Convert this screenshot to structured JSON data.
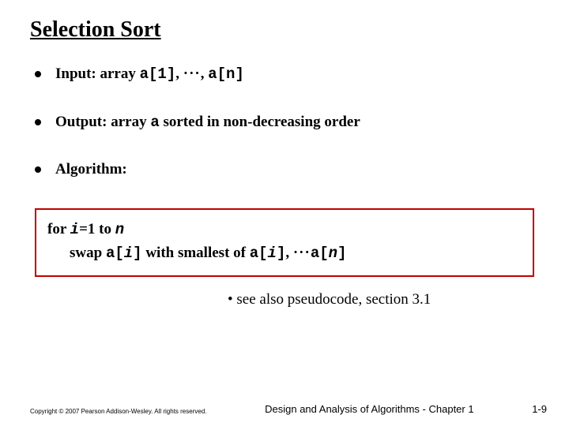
{
  "title": "Selection Sort",
  "bullets": {
    "input": {
      "prefix": "Input: array ",
      "a1": "a[1]",
      "sep": ", ",
      "ellipsis": "···",
      "sep2": ", ",
      "an": "a[n]"
    },
    "output": {
      "prefix": "Output: array ",
      "a": "a",
      "suffix": " sorted in non-decreasing order"
    },
    "algorithm_label": "Algorithm:"
  },
  "algo": {
    "line1": {
      "for": "for ",
      "i": "i",
      "eq1to": "=1 to ",
      "n": "n"
    },
    "line2": {
      "swap": "swap ",
      "a_open": "a[",
      "i1": "i",
      "close1": "]",
      "with": " with smallest of ",
      "a_open2": "a[",
      "i2": "i",
      "close2": "]",
      "sep": ", ",
      "ellipsis": "···",
      "a_open3": "a[",
      "n": "n",
      "close3": "]"
    }
  },
  "note": "• see also pseudocode, section 3.1",
  "footer": {
    "copyright": "Copyright © 2007 Pearson Addison-Wesley. All rights reserved.",
    "chapter": "Design and Analysis of Algorithms - Chapter 1",
    "page": "1-9"
  },
  "colors": {
    "box_border": "#c00000",
    "text": "#000000",
    "background": "#ffffff"
  }
}
